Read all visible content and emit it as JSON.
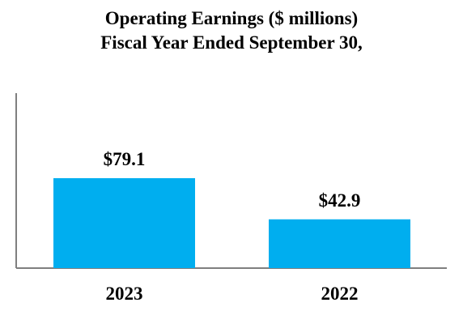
{
  "chart_data": {
    "type": "bar",
    "title": "Operating Earnings ($ millions)",
    "subtitle": "Fiscal Year Ended September 30,",
    "categories": [
      "2023",
      "2022"
    ],
    "values": [
      79.1,
      42.9
    ],
    "data_labels": [
      "$79.1",
      "$42.9"
    ],
    "xlabel": "",
    "ylabel": "",
    "ylim": [
      0,
      100
    ],
    "grid": false,
    "legend": "none",
    "bar_color": "#00AEEF",
    "axis_color": "#7F7F7F"
  }
}
